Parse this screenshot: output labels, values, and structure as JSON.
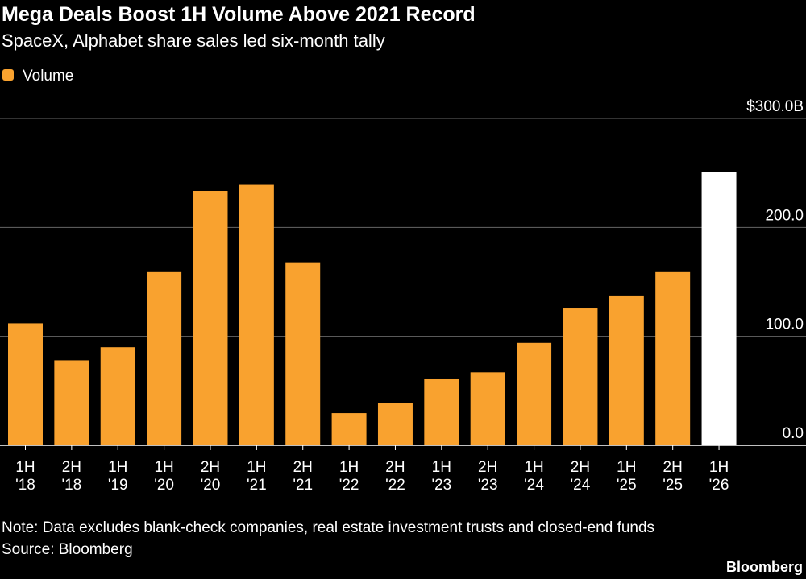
{
  "chart_data": {
    "type": "bar",
    "title": "Mega Deals Boost 1H Volume Above 2021 Record",
    "subtitle": "SpaceX, Alphabet share sales led six-month tally",
    "categories": [
      "1H\n'18",
      "2H\n'18",
      "1H\n'19",
      "1H\n'20",
      "2H\n'20",
      "1H\n'21",
      "2H\n'21",
      "1H\n'22",
      "2H\n'22",
      "1H\n'23",
      "2H\n'23",
      "1H\n'24",
      "2H\n'24",
      "1H\n'25",
      "2H\n'25",
      "1H\n'26"
    ],
    "series": [
      {
        "name": "Volume",
        "color": "#f9a22f",
        "values": [
          112,
          78,
          90,
          159,
          233.5,
          239,
          168,
          29.5,
          38.5,
          60.6,
          67,
          94,
          125.6,
          137.5,
          159,
          250.5
        ],
        "colors": [
          "#f9a22f",
          "#f9a22f",
          "#f9a22f",
          "#f9a22f",
          "#f9a22f",
          "#f9a22f",
          "#f9a22f",
          "#f9a22f",
          "#f9a22f",
          "#f9a22f",
          "#f9a22f",
          "#f9a22f",
          "#f9a22f",
          "#f9a22f",
          "#f9a22f",
          "#ffffff"
        ]
      }
    ],
    "ylim": [
      0,
      300
    ],
    "yticks": [
      {
        "value": 0,
        "label": "0.0"
      },
      {
        "value": 100,
        "label": "100.0"
      },
      {
        "value": 200,
        "label": "200.0"
      },
      {
        "value": 300,
        "label": "$300.0B"
      }
    ],
    "grid": true,
    "legend": "top-left",
    "note": "Note: Data excludes blank-check companies, real estate investment trusts and closed-end funds",
    "source": "Source: Bloomberg",
    "brand": "Bloomberg"
  }
}
